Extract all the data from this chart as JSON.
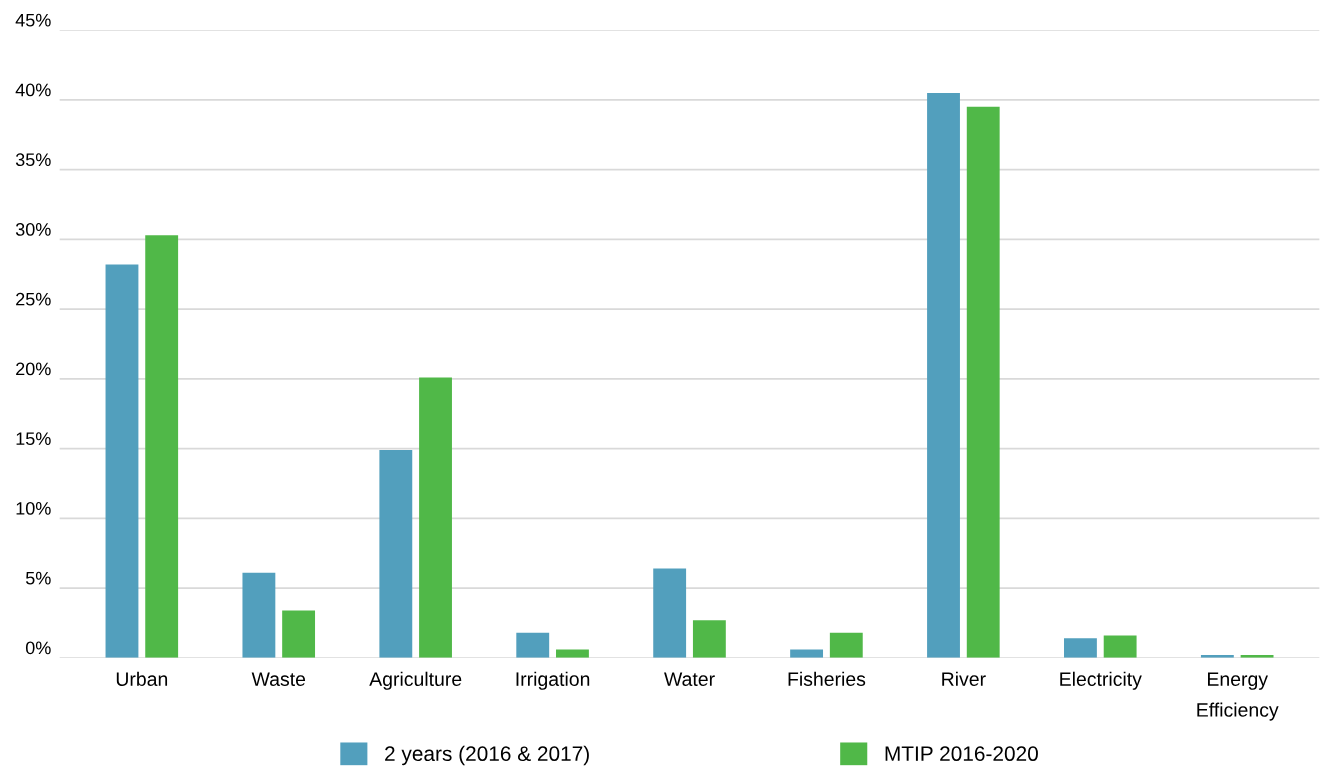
{
  "chart_data": {
    "type": "bar",
    "categories": [
      "Urban",
      "Waste",
      "Agriculture",
      "Irrigation",
      "Water",
      "Fisheries",
      "River",
      "Electricity",
      "Energy\nEfficiency"
    ],
    "series": [
      {
        "name": "2 years (2016 & 2017)",
        "color": "#529fbd",
        "values": [
          28.2,
          6.1,
          14.9,
          1.8,
          6.4,
          0.6,
          40.5,
          1.4,
          0.2
        ]
      },
      {
        "name": "MTIP 2016-2020",
        "color": "#50b848",
        "values": [
          30.3,
          3.4,
          20.1,
          0.6,
          2.7,
          1.8,
          39.5,
          1.6,
          0.2
        ]
      }
    ],
    "ylim": [
      0,
      45
    ],
    "yticks": [
      {
        "value": 0,
        "label": "0%"
      },
      {
        "value": 5,
        "label": "5%"
      },
      {
        "value": 10,
        "label": "10%"
      },
      {
        "value": 15,
        "label": "15%"
      },
      {
        "value": 20,
        "label": "20%"
      },
      {
        "value": 25,
        "label": "25%"
      },
      {
        "value": 30,
        "label": "30%"
      },
      {
        "value": 35,
        "label": "35%"
      },
      {
        "value": 40,
        "label": "40%"
      },
      {
        "value": 45,
        "label": "45%"
      }
    ],
    "grid": "y",
    "legend": "bottom"
  }
}
